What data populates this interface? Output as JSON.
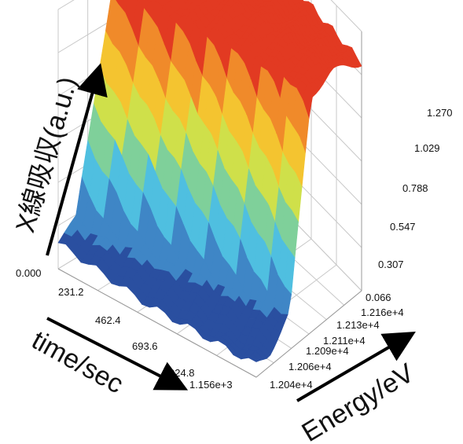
{
  "chart_data": {
    "type": "surface3d",
    "axis_labels": {
      "z": "X線吸収(a.u.)",
      "time": "time/sec",
      "energy": "Energy/eV"
    },
    "z_ticks": [
      "0.066",
      "0.307",
      "0.547",
      "0.788",
      "1.029",
      "1.270"
    ],
    "z_origin_label": "0.000",
    "time_ticks": [
      "231.2",
      "462.4",
      "693.6",
      "924.8",
      "1.156e+3"
    ],
    "energy_ticks": [
      "1.204e+4",
      "1.206e+4",
      "1.209e+4",
      "1.211e+4",
      "1.213e+4",
      "1.216e+4"
    ],
    "z_range": [
      0.066,
      1.27
    ],
    "time_range": [
      0,
      1156
    ],
    "energy_range": [
      12040,
      12160
    ],
    "surface": {
      "description_levels": "low-to-high color ramp",
      "colors": [
        "#2a4fa0",
        "#3f86c6",
        "#4fbfe0",
        "#7fd09a",
        "#cfe04a",
        "#f4c430",
        "#f08a2a",
        "#e23a22"
      ]
    },
    "series_profile": {
      "energy_samples": [
        12040,
        12064,
        12088,
        12112,
        12136,
        12160
      ],
      "absorption_relative": [
        0.05,
        0.15,
        0.95,
        0.98,
        0.93,
        0.9
      ]
    },
    "grid": true
  }
}
